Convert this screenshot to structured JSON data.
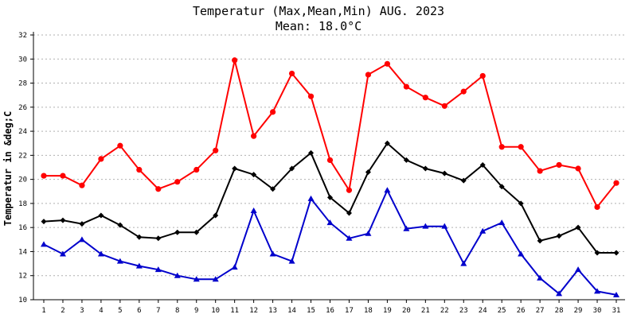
{
  "chart_data": {
    "type": "line",
    "title": "Temperatur (Max,Mean,Min) AUG. 2023",
    "subtitle": "Mean: 18.0°C",
    "ylabel": "Temperatur in &deg;C",
    "xlabel": "",
    "x": [
      "1",
      "2",
      "3",
      "4",
      "5",
      "6",
      "7",
      "8",
      "9",
      "10",
      "11",
      "12",
      "13",
      "14",
      "15",
      "16",
      "17",
      "18",
      "19",
      "20",
      "21",
      "22",
      "23",
      "24",
      "25",
      "26",
      "27",
      "28",
      "29",
      "30",
      "31"
    ],
    "ylim": [
      10,
      32
    ],
    "yticks": [
      "10",
      "12",
      "14",
      "16",
      "18",
      "20",
      "22",
      "24",
      "26",
      "28",
      "30",
      "32"
    ],
    "grid": true,
    "series": [
      {
        "name": "",
        "color": "#ff0000",
        "marker": "circle",
        "values": [
          20.3,
          20.3,
          19.5,
          21.7,
          22.8,
          20.8,
          19.2,
          19.8,
          20.8,
          22.4,
          29.9,
          23.6,
          25.6,
          28.8,
          26.9,
          21.6,
          19.1,
          28.7,
          29.6,
          27.7,
          26.8,
          26.1,
          27.3,
          28.6,
          22.7,
          22.7,
          20.7,
          21.2,
          20.9,
          17.7,
          19.7
        ]
      },
      {
        "name": "",
        "color": "#000000",
        "marker": "diamond",
        "values": [
          16.5,
          16.6,
          16.3,
          17.0,
          16.2,
          15.2,
          15.1,
          15.6,
          15.6,
          17.0,
          20.9,
          20.4,
          19.2,
          20.9,
          22.2,
          18.5,
          17.2,
          20.6,
          23.0,
          21.6,
          20.9,
          20.5,
          19.9,
          21.2,
          19.4,
          18.0,
          14.9,
          15.3,
          16.0,
          13.9,
          13.9
        ]
      },
      {
        "name": "",
        "color": "#0000cc",
        "marker": "triangle",
        "values": [
          14.6,
          13.8,
          15.0,
          13.8,
          13.2,
          12.8,
          12.5,
          12.0,
          11.7,
          11.7,
          12.7,
          17.4,
          13.8,
          13.2,
          18.4,
          16.4,
          15.1,
          15.5,
          19.1,
          15.9,
          16.1,
          16.1,
          13.0,
          15.7,
          16.4,
          13.8,
          11.8,
          10.5,
          12.5,
          10.7,
          10.4
        ]
      }
    ]
  }
}
